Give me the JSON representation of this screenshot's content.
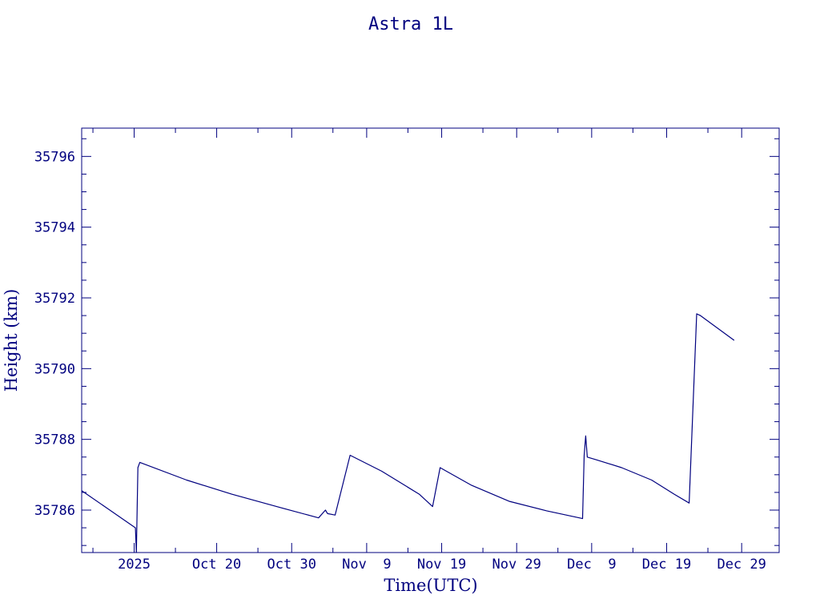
{
  "chart_data": {
    "type": "line",
    "title": "Astra 1L",
    "xlabel": "Time(UTC)",
    "ylabel": "Height (km)",
    "color": "#00007f",
    "x_ticks": [
      {
        "label": "2025",
        "date": "2025-10-09"
      },
      {
        "label": "Oct 20",
        "date": "2025-10-20"
      },
      {
        "label": "Oct 30",
        "date": "2025-10-30"
      },
      {
        "label": "Nov  9",
        "date": "2025-11-09"
      },
      {
        "label": "Nov 19",
        "date": "2025-11-19"
      },
      {
        "label": "Nov 29",
        "date": "2025-11-29"
      },
      {
        "label": "Dec  9",
        "date": "2025-12-09"
      },
      {
        "label": "Dec 19",
        "date": "2025-12-19"
      },
      {
        "label": "Dec 29",
        "date": "2025-12-29"
      }
    ],
    "xlim": [
      "2025-10-02",
      "2026-01-03"
    ],
    "y_ticks": [
      35786,
      35788,
      35790,
      35792,
      35794,
      35796
    ],
    "ylim": [
      35784.8,
      35796.8
    ],
    "series": [
      {
        "points": [
          {
            "x": "2025-10-02T00:00",
            "y": 35786.55
          },
          {
            "x": "2025-10-09T04:00",
            "y": 35785.5
          },
          {
            "x": "2025-10-09T07:00",
            "y": 35784.8
          },
          {
            "x": "2025-10-09T12:00",
            "y": 35787.2
          },
          {
            "x": "2025-10-09T18:00",
            "y": 35787.35
          },
          {
            "x": "2025-10-16T00:00",
            "y": 35786.85
          },
          {
            "x": "2025-10-22T00:00",
            "y": 35786.45
          },
          {
            "x": "2025-10-28T00:00",
            "y": 35786.1
          },
          {
            "x": "2025-11-02T14:00",
            "y": 35785.78
          },
          {
            "x": "2025-11-03T12:00",
            "y": 35786.0
          },
          {
            "x": "2025-11-03T19:00",
            "y": 35785.9
          },
          {
            "x": "2025-11-04T19:00",
            "y": 35785.86
          },
          {
            "x": "2025-11-06T19:00",
            "y": 35787.55
          },
          {
            "x": "2025-11-11T00:00",
            "y": 35787.1
          },
          {
            "x": "2025-11-16T00:00",
            "y": 35786.45
          },
          {
            "x": "2025-11-17T19:00",
            "y": 35786.1
          },
          {
            "x": "2025-11-18T19:00",
            "y": 35787.2
          },
          {
            "x": "2025-11-23T00:00",
            "y": 35786.7
          },
          {
            "x": "2025-11-28T00:00",
            "y": 35786.25
          },
          {
            "x": "2025-12-03T00:00",
            "y": 35785.98
          },
          {
            "x": "2025-12-07T19:00",
            "y": 35785.76
          },
          {
            "x": "2025-12-08T00:00",
            "y": 35787.55
          },
          {
            "x": "2025-12-08T05:00",
            "y": 35788.1
          },
          {
            "x": "2025-12-08T10:00",
            "y": 35787.5
          },
          {
            "x": "2025-12-09T12:00",
            "y": 35787.43
          },
          {
            "x": "2025-12-13T00:00",
            "y": 35787.2
          },
          {
            "x": "2025-12-17T00:00",
            "y": 35786.85
          },
          {
            "x": "2025-12-20T00:00",
            "y": 35786.45
          },
          {
            "x": "2025-12-22T00:00",
            "y": 35786.2
          },
          {
            "x": "2025-12-23T00:00",
            "y": 35791.55
          },
          {
            "x": "2025-12-23T12:00",
            "y": 35791.5
          },
          {
            "x": "2025-12-28T00:00",
            "y": 35790.8
          }
        ]
      }
    ]
  }
}
